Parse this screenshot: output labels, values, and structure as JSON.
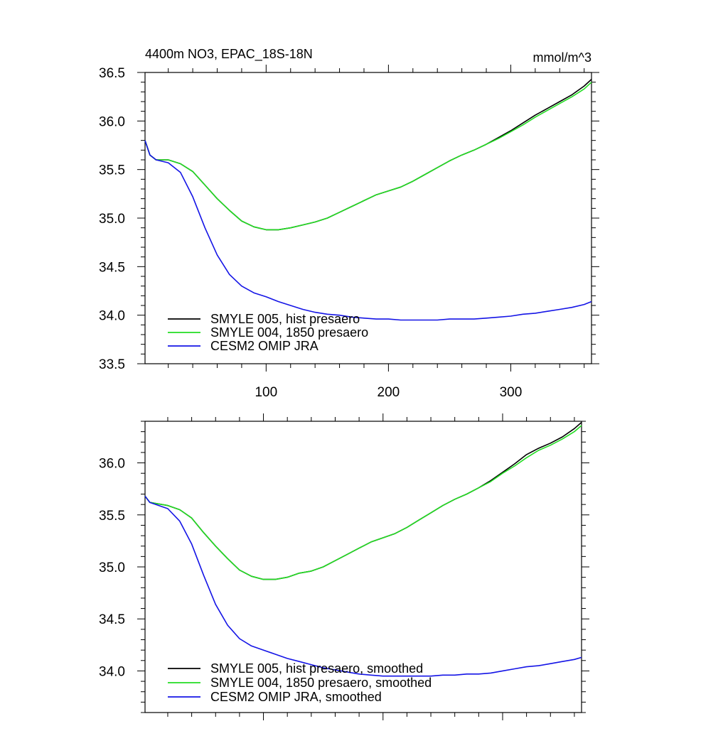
{
  "chart_data": [
    {
      "type": "line",
      "title": "4400m NO3, EPAC_18S-18N",
      "units": "mmol/m^3",
      "xlim": [
        1,
        366
      ],
      "ylim": [
        33.5,
        36.5
      ],
      "x_ticks": [
        100,
        200,
        300
      ],
      "x_tick_labels": [
        "100",
        "200",
        "300"
      ],
      "y_ticks": [
        33.5,
        34.0,
        34.5,
        35.0,
        35.5,
        36.0,
        36.5
      ],
      "y_tick_labels": [
        "33.5",
        "34.0",
        "34.5",
        "35.0",
        "35.5",
        "36.0",
        "36.5"
      ],
      "grid": false,
      "legend_position": "bottom-left",
      "series": [
        {
          "name": "SMYLE 005, hist presaero",
          "color": "#000000",
          "x": [
            1,
            5,
            10,
            20,
            30,
            40,
            50,
            60,
            70,
            80,
            90,
            100,
            110,
            120,
            130,
            140,
            150,
            160,
            170,
            180,
            190,
            200,
            210,
            220,
            230,
            240,
            250,
            260,
            270,
            280,
            290,
            300,
            310,
            320,
            330,
            340,
            350,
            360,
            366
          ],
          "y": [
            35.8,
            35.65,
            35.6,
            35.6,
            35.56,
            35.48,
            35.34,
            35.2,
            35.08,
            34.97,
            34.91,
            34.88,
            34.88,
            34.9,
            34.93,
            34.96,
            35.0,
            35.06,
            35.12,
            35.18,
            35.24,
            35.28,
            35.32,
            35.38,
            35.45,
            35.52,
            35.59,
            35.65,
            35.7,
            35.76,
            35.83,
            35.9,
            35.98,
            36.06,
            36.13,
            36.2,
            36.27,
            36.36,
            36.43
          ]
        },
        {
          "name": "SMYLE 004, 1850 presaero",
          "color": "#22dd22",
          "x": [
            1,
            5,
            10,
            20,
            30,
            40,
            50,
            60,
            70,
            80,
            90,
            100,
            110,
            120,
            130,
            140,
            150,
            160,
            170,
            180,
            190,
            200,
            210,
            220,
            230,
            240,
            250,
            260,
            270,
            280,
            290,
            300,
            310,
            320,
            330,
            340,
            350,
            360,
            366
          ],
          "y": [
            35.8,
            35.65,
            35.6,
            35.6,
            35.56,
            35.48,
            35.34,
            35.2,
            35.08,
            34.97,
            34.91,
            34.88,
            34.88,
            34.9,
            34.93,
            34.96,
            35.0,
            35.06,
            35.12,
            35.18,
            35.24,
            35.28,
            35.32,
            35.38,
            35.45,
            35.52,
            35.59,
            35.65,
            35.7,
            35.76,
            35.82,
            35.89,
            35.96,
            36.04,
            36.11,
            36.18,
            36.25,
            36.33,
            36.4
          ]
        },
        {
          "name": "CESM2 OMIP JRA",
          "color": "#1414e6",
          "x": [
            1,
            5,
            10,
            20,
            30,
            40,
            50,
            60,
            70,
            80,
            90,
            100,
            110,
            120,
            130,
            140,
            150,
            160,
            170,
            180,
            190,
            200,
            210,
            220,
            230,
            240,
            250,
            260,
            270,
            280,
            290,
            300,
            310,
            320,
            330,
            340,
            350,
            360,
            366
          ],
          "y": [
            35.8,
            35.65,
            35.6,
            35.57,
            35.47,
            35.22,
            34.9,
            34.62,
            34.42,
            34.3,
            34.23,
            34.19,
            34.14,
            34.1,
            34.06,
            34.03,
            34.01,
            34.0,
            33.98,
            33.97,
            33.96,
            33.96,
            33.95,
            33.95,
            33.95,
            33.95,
            33.96,
            33.96,
            33.96,
            33.97,
            33.98,
            33.99,
            34.01,
            34.02,
            34.04,
            34.06,
            34.08,
            34.11,
            34.14
          ]
        }
      ]
    },
    {
      "type": "line",
      "title": "",
      "xlim": [
        1,
        366
      ],
      "ylim": [
        33.6,
        36.4
      ],
      "x_ticks": [
        100,
        200,
        300
      ],
      "x_tick_labels": [],
      "y_ticks": [
        34.0,
        34.5,
        35.0,
        35.5,
        36.0
      ],
      "y_tick_labels": [
        "34.0",
        "34.5",
        "35.0",
        "35.5",
        "36.0"
      ],
      "grid": false,
      "legend_position": "bottom-left",
      "series": [
        {
          "name": "SMYLE 005, hist presaero, smoothed",
          "color": "#000000",
          "x": [
            1,
            5,
            10,
            20,
            30,
            40,
            50,
            60,
            70,
            80,
            90,
            100,
            110,
            120,
            130,
            140,
            150,
            160,
            170,
            180,
            190,
            200,
            210,
            220,
            230,
            240,
            250,
            260,
            270,
            280,
            290,
            300,
            310,
            320,
            330,
            340,
            350,
            360,
            366
          ],
          "y": [
            35.68,
            35.62,
            35.61,
            35.59,
            35.55,
            35.47,
            35.33,
            35.2,
            35.08,
            34.97,
            34.91,
            34.88,
            34.88,
            34.9,
            34.94,
            34.96,
            35.0,
            35.06,
            35.12,
            35.18,
            35.24,
            35.28,
            35.32,
            35.38,
            35.45,
            35.52,
            35.59,
            35.65,
            35.7,
            35.76,
            35.83,
            35.91,
            35.99,
            36.08,
            36.14,
            36.19,
            36.25,
            36.33,
            36.39
          ]
        },
        {
          "name": "SMYLE 004, 1850 presaero, smoothed",
          "color": "#22dd22",
          "x": [
            1,
            5,
            10,
            20,
            30,
            40,
            50,
            60,
            70,
            80,
            90,
            100,
            110,
            120,
            130,
            140,
            150,
            160,
            170,
            180,
            190,
            200,
            210,
            220,
            230,
            240,
            250,
            260,
            270,
            280,
            290,
            300,
            310,
            320,
            330,
            340,
            350,
            360,
            366
          ],
          "y": [
            35.68,
            35.62,
            35.61,
            35.59,
            35.55,
            35.47,
            35.33,
            35.2,
            35.08,
            34.97,
            34.91,
            34.88,
            34.88,
            34.9,
            34.94,
            34.96,
            35.0,
            35.06,
            35.12,
            35.18,
            35.24,
            35.28,
            35.32,
            35.38,
            35.45,
            35.52,
            35.59,
            35.65,
            35.7,
            35.76,
            35.82,
            35.9,
            35.97,
            36.05,
            36.12,
            36.17,
            36.23,
            36.3,
            36.36
          ]
        },
        {
          "name": "CESM2 OMIP JRA, smoothed",
          "color": "#1414e6",
          "x": [
            1,
            5,
            10,
            20,
            30,
            40,
            50,
            60,
            70,
            80,
            90,
            100,
            110,
            120,
            130,
            140,
            150,
            160,
            170,
            180,
            190,
            200,
            210,
            220,
            230,
            240,
            250,
            260,
            270,
            280,
            290,
            300,
            310,
            320,
            330,
            340,
            350,
            360,
            366
          ],
          "y": [
            35.68,
            35.62,
            35.6,
            35.56,
            35.44,
            35.22,
            34.92,
            34.64,
            34.44,
            34.31,
            34.24,
            34.2,
            34.16,
            34.12,
            34.09,
            34.06,
            34.03,
            34.01,
            33.99,
            33.97,
            33.96,
            33.95,
            33.95,
            33.95,
            33.95,
            33.95,
            33.96,
            33.96,
            33.97,
            33.97,
            33.98,
            34.0,
            34.02,
            34.04,
            34.05,
            34.07,
            34.09,
            34.11,
            34.13
          ]
        }
      ]
    }
  ]
}
